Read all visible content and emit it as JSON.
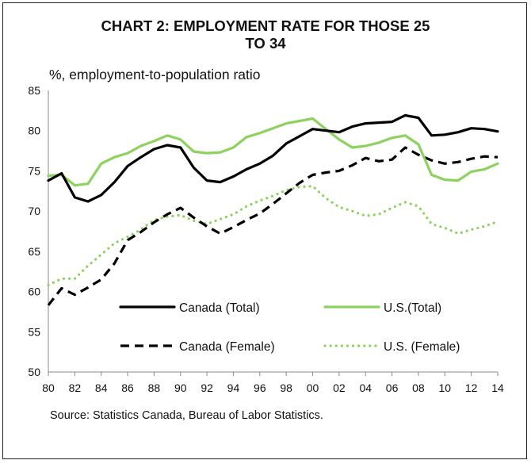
{
  "chart_data": {
    "type": "line",
    "title": "CHART 2: EMPLOYMENT RATE FOR THOSE 25 TO 34",
    "title_lines": [
      "CHART 2: EMPLOYMENT RATE FOR THOSE 25",
      "TO 34"
    ],
    "ylabel": "%, employment-to-population ratio",
    "ylim": [
      50,
      85
    ],
    "yticks": [
      50,
      55,
      60,
      65,
      70,
      75,
      80,
      85
    ],
    "xlim": [
      1980,
      2014
    ],
    "xticks": [
      1980,
      1982,
      1984,
      1986,
      1988,
      1990,
      1992,
      1994,
      1996,
      1998,
      2000,
      2002,
      2004,
      2006,
      2008,
      2010,
      2012,
      2014
    ],
    "xtick_labels": [
      "80",
      "82",
      "84",
      "86",
      "88",
      "90",
      "92",
      "94",
      "96",
      "98",
      "00",
      "02",
      "04",
      "06",
      "08",
      "10",
      "12",
      "14"
    ],
    "x": [
      1980,
      1981,
      1982,
      1983,
      1984,
      1985,
      1986,
      1987,
      1988,
      1989,
      1990,
      1991,
      1992,
      1993,
      1994,
      1995,
      1996,
      1997,
      1998,
      1999,
      2000,
      2001,
      2002,
      2003,
      2004,
      2005,
      2006,
      2007,
      2008,
      2009,
      2010,
      2011,
      2012,
      2013,
      2014
    ],
    "grid": false,
    "series": [
      {
        "name": "Canada (Total)",
        "color": "#000000",
        "style": "solid",
        "values": [
          73.8,
          74.7,
          71.7,
          71.2,
          72.0,
          73.6,
          75.6,
          76.7,
          77.7,
          78.2,
          77.9,
          75.4,
          73.8,
          73.6,
          74.3,
          75.2,
          75.9,
          76.9,
          78.4,
          79.3,
          80.2,
          80.0,
          79.8,
          80.5,
          80.9,
          81.0,
          81.1,
          81.9,
          81.6,
          79.4,
          79.5,
          79.8,
          80.3,
          80.2,
          79.9
        ]
      },
      {
        "name": "U.S.(Total)",
        "color": "#8dd25f",
        "style": "solid",
        "values": [
          74.4,
          74.5,
          73.2,
          73.4,
          75.9,
          76.7,
          77.2,
          78.1,
          78.7,
          79.4,
          78.9,
          77.4,
          77.2,
          77.3,
          77.9,
          79.2,
          79.7,
          80.3,
          80.9,
          81.2,
          81.5,
          80.2,
          78.9,
          77.9,
          78.1,
          78.5,
          79.1,
          79.4,
          78.3,
          74.5,
          73.9,
          73.8,
          74.9,
          75.2,
          75.9
        ]
      },
      {
        "name": "Canada (Female)",
        "color": "#000000",
        "style": "dashed",
        "values": [
          58.3,
          60.4,
          59.6,
          60.5,
          61.5,
          63.5,
          66.4,
          67.4,
          68.6,
          69.6,
          70.4,
          69.2,
          68.1,
          67.2,
          68.0,
          68.9,
          69.7,
          70.9,
          72.2,
          73.5,
          74.5,
          74.8,
          75.0,
          75.7,
          76.6,
          76.2,
          76.4,
          77.9,
          77.0,
          76.3,
          75.9,
          76.1,
          76.5,
          76.8,
          76.7
        ]
      },
      {
        "name": "U.S. (Female)",
        "color": "#8dd25f",
        "style": "dotted",
        "values": [
          60.8,
          61.6,
          61.6,
          63.2,
          64.6,
          66.0,
          66.8,
          67.7,
          68.9,
          69.3,
          69.5,
          68.8,
          68.4,
          69.0,
          69.6,
          70.6,
          71.3,
          71.9,
          72.6,
          73.0,
          73.1,
          71.6,
          70.5,
          70.0,
          69.4,
          69.6,
          70.4,
          71.1,
          70.6,
          68.4,
          67.9,
          67.2,
          67.7,
          68.1,
          68.7
        ]
      }
    ],
    "legend_placement": "bottom-inside"
  },
  "source": "Source: Statistics Canada, Bureau of Labor Statistics."
}
